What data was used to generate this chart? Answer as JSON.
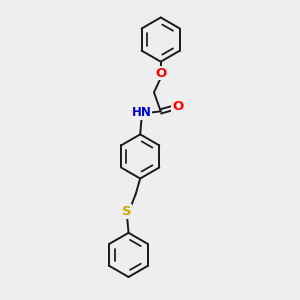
{
  "bg": "#eeeeee",
  "bond_color": "#1a1a1a",
  "O_color": "#ff0000",
  "N_color": "#0000cd",
  "S_color": "#ccaa00",
  "font_size": 8.5,
  "lw": 1.4,
  "ring_r": 0.72,
  "dbl_r": 0.54,
  "figsize": [
    3.0,
    3.0
  ],
  "dpi": 100,
  "xlim": [
    -1.5,
    1.5
  ],
  "ylim": [
    -4.8,
    4.8
  ]
}
